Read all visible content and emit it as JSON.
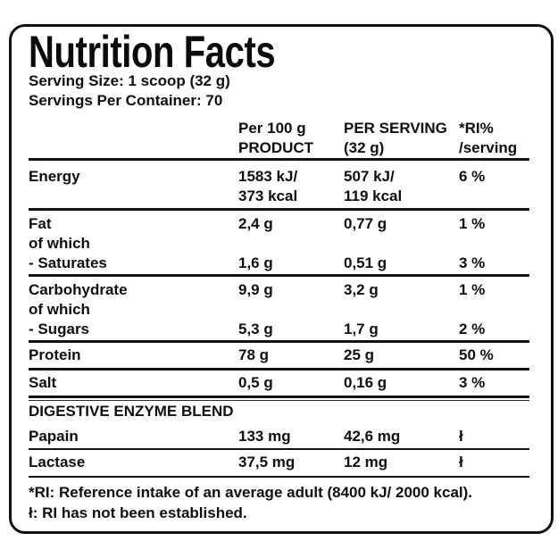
{
  "label": {
    "title": "Nutrition Facts",
    "serving_size": "Serving Size: 1 scoop (32 g)",
    "servings_per_container": "Servings Per Container: 70",
    "table": {
      "header": {
        "per_100g": "Per 100 g\nPRODUCT",
        "per_serving": "PER SERVING\n(32 g)",
        "ri": "*RI%\n/serving"
      },
      "rows": [
        {
          "label": "Energy",
          "per_100g": "1583 kJ/\n373 kcal",
          "per_serving": "507 kJ/\n119 kcal",
          "ri": "6 %"
        },
        {
          "label": "Fat\nof which\n- Saturates",
          "per_100g": "2,4 g\n\n1,6 g",
          "per_serving": "0,77 g\n\n0,51 g",
          "ri": "1 %\n\n3 %"
        },
        {
          "label": "Carbohydrate\nof which\n- Sugars",
          "per_100g": "9,9 g\n\n5,3 g",
          "per_serving": "3,2 g\n\n1,7 g",
          "ri": "1 %\n\n2 %"
        },
        {
          "label": "Protein",
          "per_100g": "78 g",
          "per_serving": "25 g",
          "ri": "50 %"
        },
        {
          "label": "Salt",
          "per_100g": "0,5 g",
          "per_serving": "0,16 g",
          "ri": "3 %"
        },
        {
          "label": "Papain",
          "per_100g": "133 mg",
          "per_serving": "42,6 mg",
          "ri": "ł"
        },
        {
          "label": "Lactase",
          "per_100g": "37,5 mg",
          "per_serving": "12 mg",
          "ri": "ł"
        }
      ],
      "section_header": "DIGESTIVE ENZYME BLEND"
    },
    "footnotes": {
      "ri_definition": "*RI: Reference intake of an average adult (8400 kJ/ 2000 kcal).",
      "not_established": "ł: RI has not been established."
    }
  }
}
